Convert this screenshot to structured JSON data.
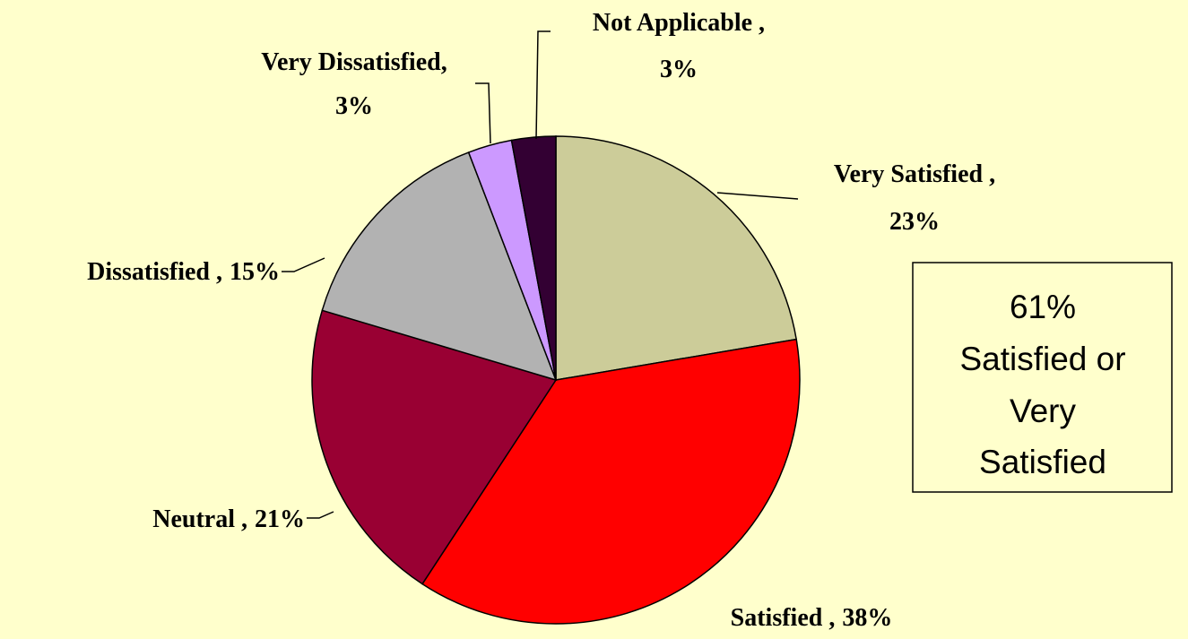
{
  "chart_data": {
    "type": "pie",
    "categories": [
      "Very Satisfied ,",
      "Satisfied ,",
      "Neutral ,",
      "Dissatisfied ,",
      "Very Dissatisfied,",
      "Not Applicable ,"
    ],
    "values": [
      23,
      38,
      21,
      15,
      3,
      3
    ],
    "value_labels": [
      "23%",
      "38%",
      "21%",
      "15%",
      "3%",
      "3%"
    ],
    "colors": [
      "#CCCC99",
      "#FF0000",
      "#990033",
      "#B2B2B2",
      "#CC99FF",
      "#330033"
    ],
    "annotation": [
      "61%",
      "Satisfied or",
      "Very",
      "Satisfied"
    ]
  }
}
